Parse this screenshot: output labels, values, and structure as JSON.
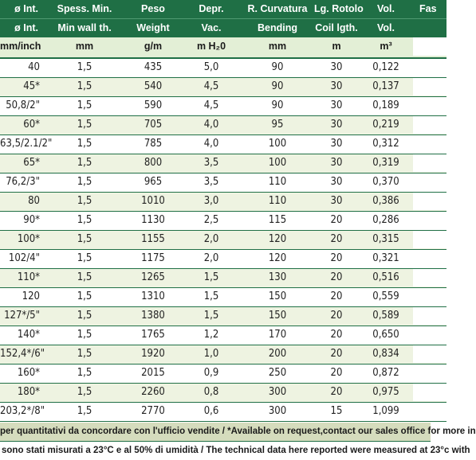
{
  "header_row1": [
    "ø Int.",
    "Spess. Min.",
    "Peso",
    "Depr.",
    "R. Curvatura",
    "Lg. Rotolo",
    "Vol.",
    "Fas"
  ],
  "header_row2": [
    "ø Int.",
    "Min wall th.",
    "Weight",
    "Vac.",
    "Bending",
    "Coil lgth.",
    "Vol.",
    ""
  ],
  "units_row": [
    "mm/inch",
    "mm",
    "g/m",
    "m H₂0",
    "mm",
    "m",
    "m³",
    ""
  ],
  "rows": [
    [
      "40",
      "1,5",
      "435",
      "5,0",
      "90",
      "30",
      "0,122"
    ],
    [
      "45*",
      "1,5",
      "540",
      "4,5",
      "90",
      "30",
      "0,137"
    ],
    [
      "50,8/2\"",
      "1,5",
      "590",
      "4,5",
      "90",
      "30",
      "0,189"
    ],
    [
      "60*",
      "1,5",
      "705",
      "4,0",
      "95",
      "30",
      "0,219"
    ],
    [
      "63,5/2.1/2\"",
      "1,5",
      "785",
      "4,0",
      "100",
      "30",
      "0,312"
    ],
    [
      "65*",
      "1,5",
      "800",
      "3,5",
      "100",
      "30",
      "0,319"
    ],
    [
      "76,2/3\"",
      "1,5",
      "965",
      "3,5",
      "110",
      "30",
      "0,370"
    ],
    [
      "80",
      "1,5",
      "1010",
      "3,0",
      "110",
      "30",
      "0,386"
    ],
    [
      "90*",
      "1,5",
      "1130",
      "2,5",
      "115",
      "20",
      "0,286"
    ],
    [
      "100*",
      "1,5",
      "1155",
      "2,0",
      "120",
      "20",
      "0,315"
    ],
    [
      "102/4\"",
      "1,5",
      "1175",
      "2,0",
      "120",
      "20",
      "0,321"
    ],
    [
      "110*",
      "1,5",
      "1265",
      "1,5",
      "130",
      "20",
      "0,516"
    ],
    [
      "120",
      "1,5",
      "1310",
      "1,5",
      "150",
      "20",
      "0,559"
    ],
    [
      "127*/5\"",
      "1,5",
      "1380",
      "1,5",
      "150",
      "20",
      "0,589"
    ],
    [
      "140*",
      "1,5",
      "1765",
      "1,2",
      "170",
      "20",
      "0,650"
    ],
    [
      "152,4*/6\"",
      "1,5",
      "1920",
      "1,0",
      "200",
      "20",
      "0,834"
    ],
    [
      "160*",
      "1,5",
      "2015",
      "0,9",
      "250",
      "20",
      "0,872"
    ],
    [
      "180*",
      "1,5",
      "2260",
      "0,8",
      "300",
      "20",
      "0,975"
    ],
    [
      "203,2*/8\"",
      "1,5",
      "2770",
      "0,6",
      "300",
      "15",
      "1,099"
    ]
  ],
  "footnote1": "per quantitativi da concordare con l'ufficio vendite / *Available on request,contact our sales office for more in",
  "footnote2": "sono stati misurati a 23°C e al 50% di umidità / The technical data here reported were measured at 23°c with",
  "colors": {
    "header_bg": "#1f6f45",
    "subheader_bg": "#e3efd6",
    "even_row": "#eef3e1",
    "note_bg": "#d5dcbd"
  }
}
